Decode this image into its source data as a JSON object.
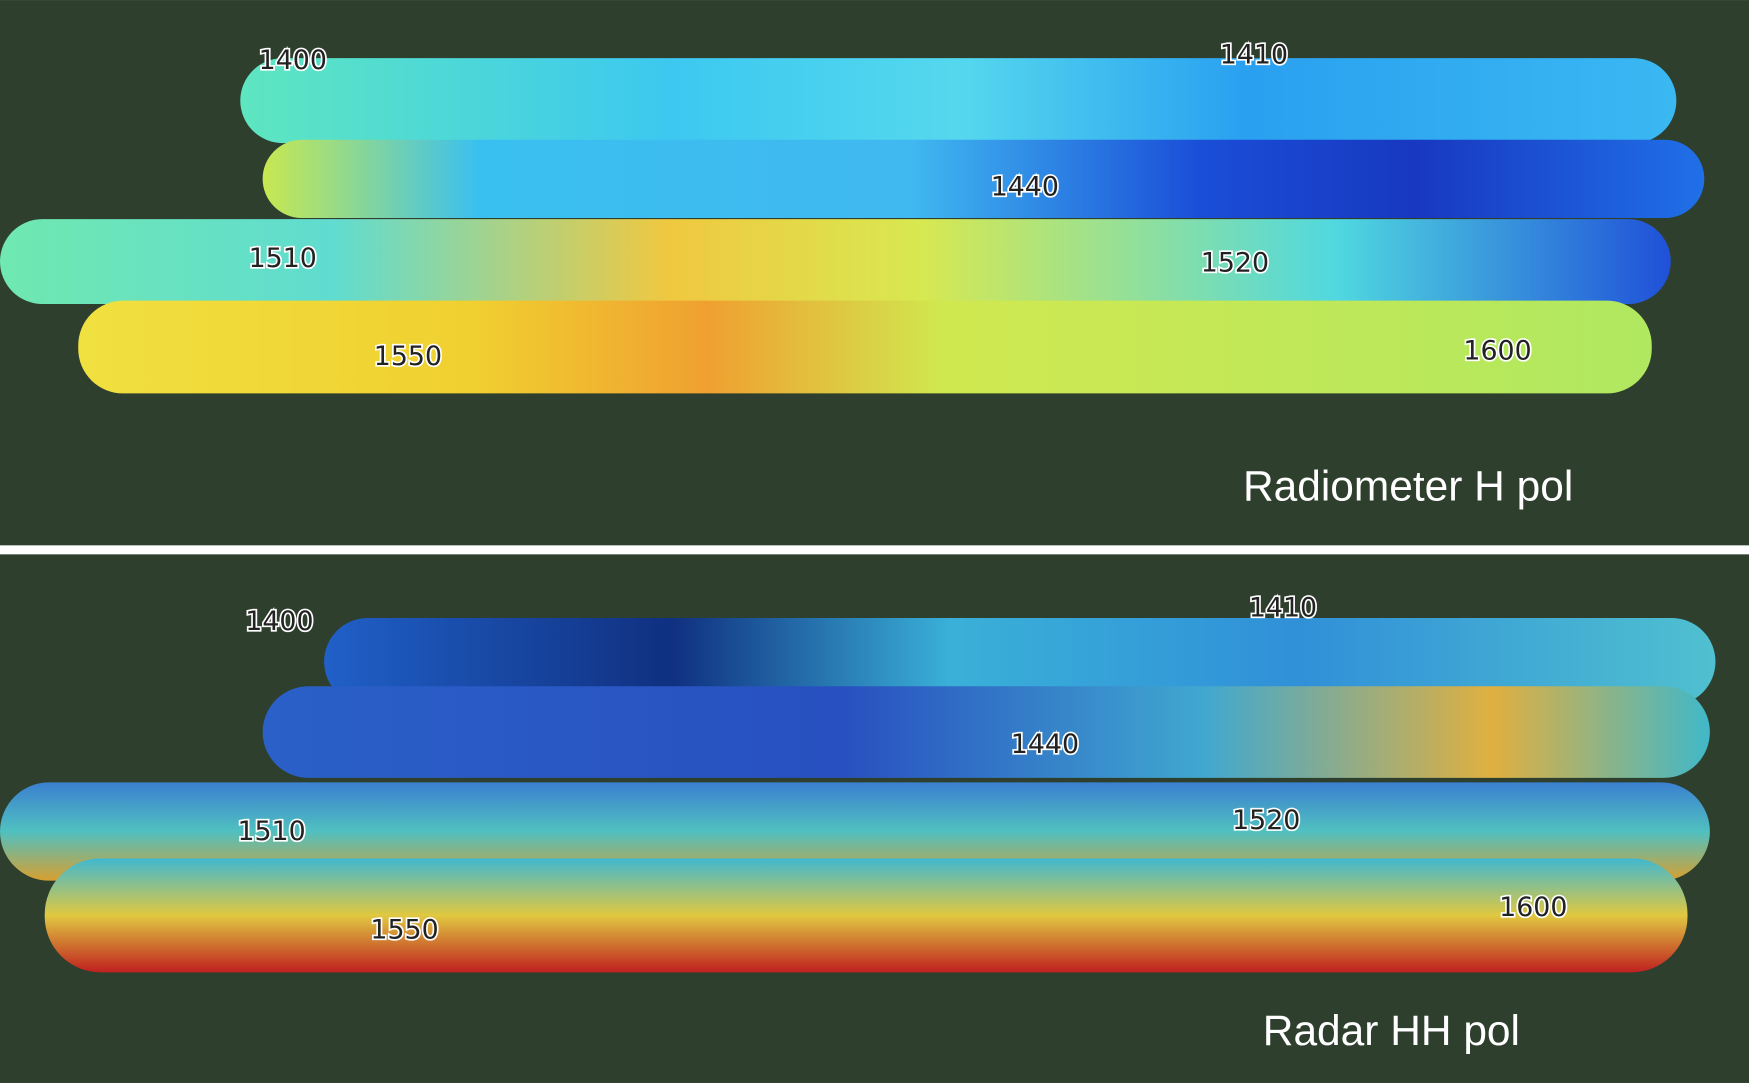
{
  "panels": [
    {
      "caption": "Radiometer H pol",
      "labels": [
        "1400",
        "1410",
        "1440",
        "1510",
        "1520",
        "1550",
        "1600"
      ]
    },
    {
      "caption": "Radar HH pol",
      "labels": [
        "1400",
        "1410",
        "1440",
        "1510",
        "1520",
        "1550",
        "1600"
      ]
    }
  ]
}
